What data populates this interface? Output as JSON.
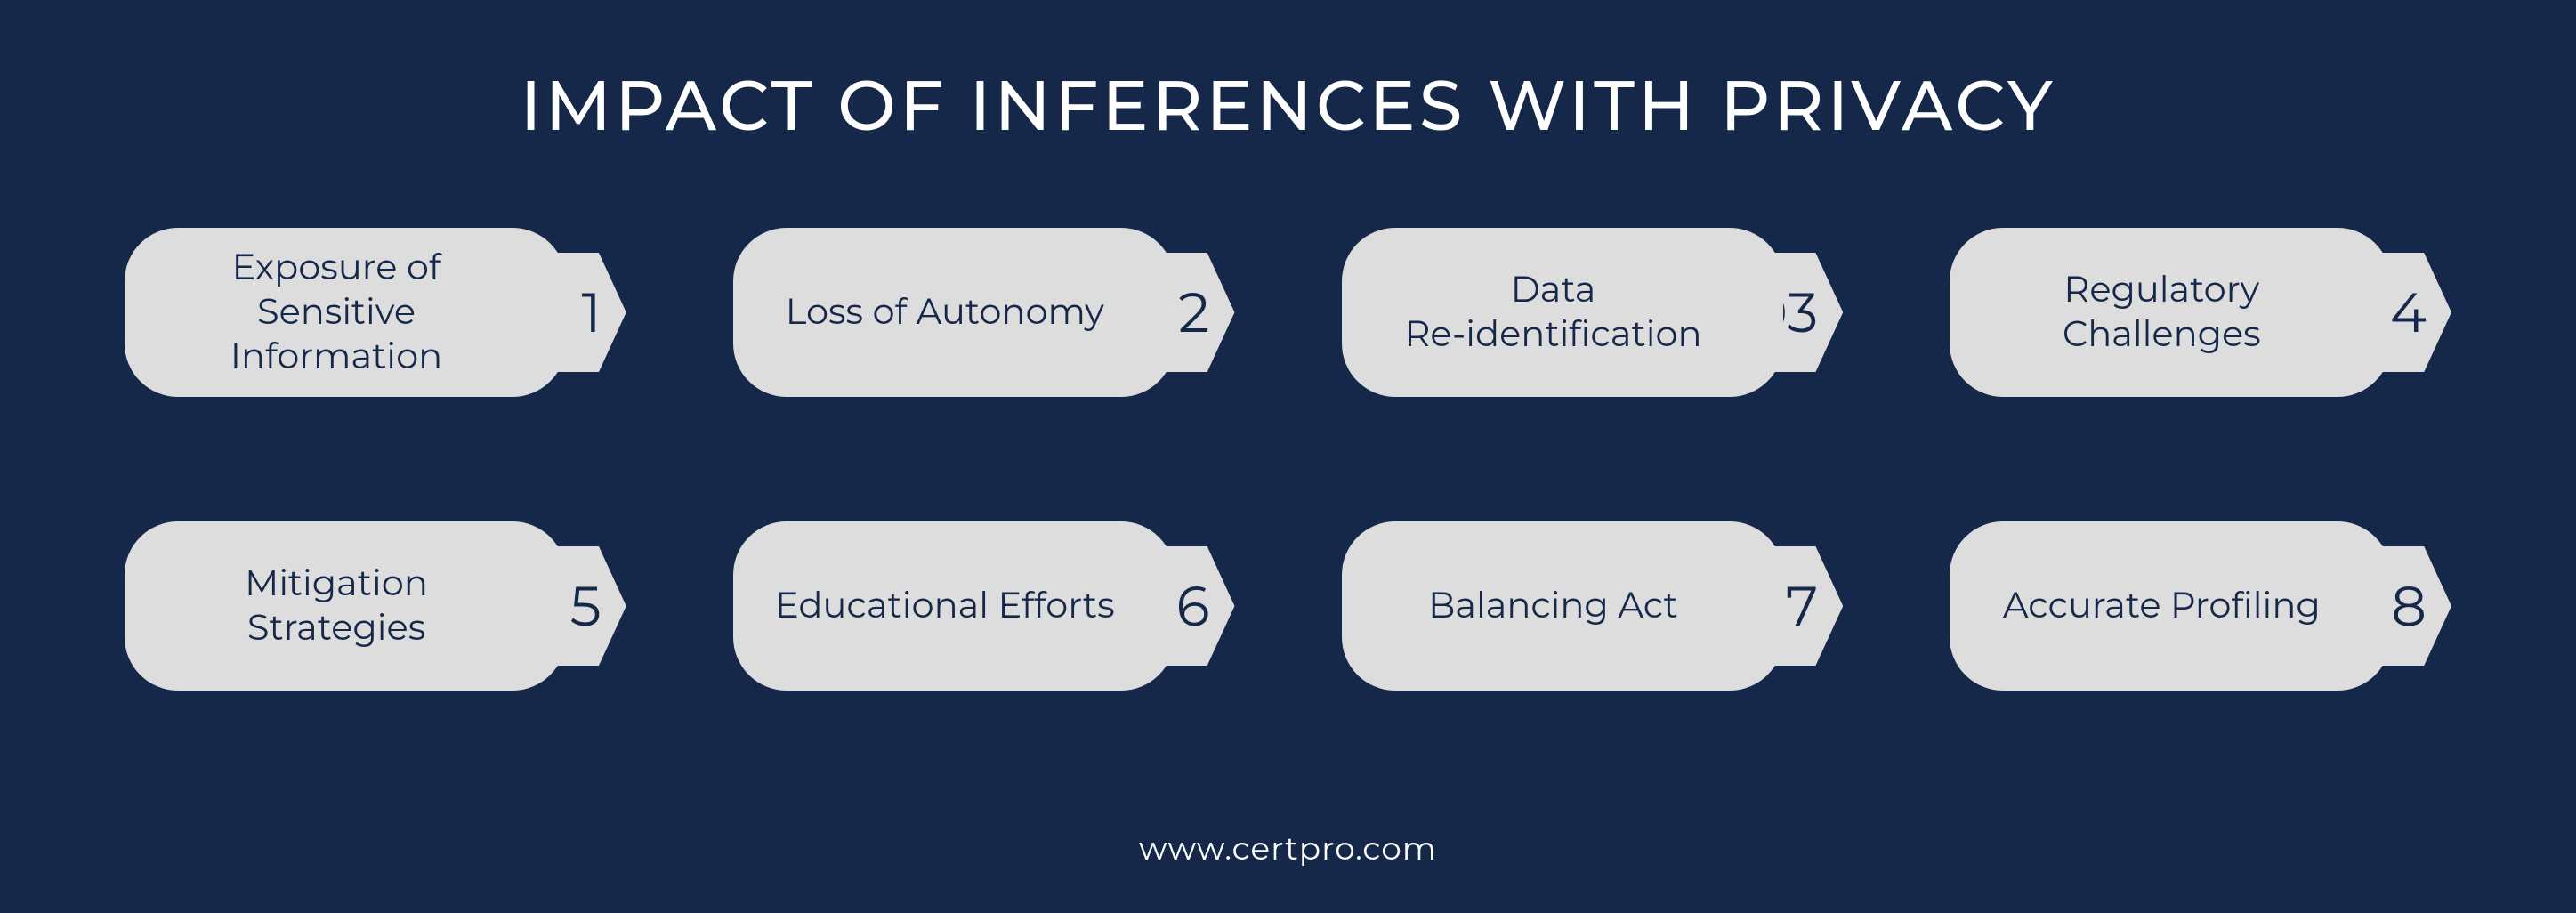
{
  "background_color": "#16284a",
  "pill_color": "#dddddd",
  "tag_color": "#dddddd",
  "text_color_light": "#ffffff",
  "text_color_dark": "#16284a",
  "title": "IMPACT OF INFERENCES WITH PRIVACY",
  "footer": "www.certpro.com",
  "items": [
    {
      "label": "Exposure of Sensitive Information",
      "num": "1"
    },
    {
      "label": "Loss of Autonomy",
      "num": "2"
    },
    {
      "label": "Data\nRe-identification",
      "num": "03"
    },
    {
      "label": "Regulatory Challenges",
      "num": "04"
    },
    {
      "label": "Mitigation Strategies",
      "num": "5"
    },
    {
      "label": "Educational Efforts",
      "num": "06"
    },
    {
      "label": "Balancing Act",
      "num": "07"
    },
    {
      "label": "Accurate Profiling",
      "num": "08"
    }
  ]
}
